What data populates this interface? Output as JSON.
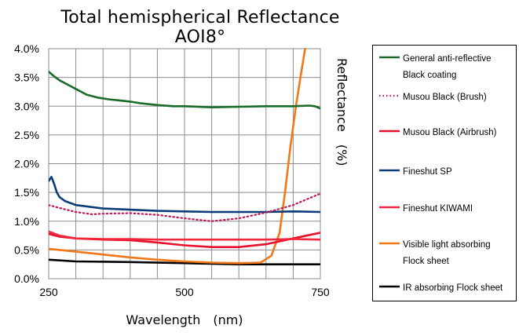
{
  "chart_data": {
    "type": "line",
    "title": "Total hemispherical Reflectance AOI8°",
    "xlabel": "Wavelength　(nm)",
    "ylabel": "Reflectance　(%)",
    "xlim": [
      250,
      750
    ],
    "ylim": [
      0,
      4.0
    ],
    "xticks": [
      "250",
      "500",
      "750"
    ],
    "yticks": [
      "0.0%",
      "0.5%",
      "1.0%",
      "1.5%",
      "2.0%",
      "2.5%",
      "3.0%",
      "3.5%",
      "4.0%"
    ],
    "grid": true,
    "legend_position": "right",
    "series": [
      {
        "name": "General anti-reflective Black coating",
        "color": "#1a6b2a",
        "dash": "solid",
        "x": [
          250,
          260,
          270,
          280,
          290,
          300,
          320,
          340,
          360,
          380,
          400,
          420,
          450,
          480,
          500,
          550,
          600,
          650,
          700,
          730,
          740,
          750
        ],
        "y": [
          3.6,
          3.52,
          3.45,
          3.4,
          3.35,
          3.3,
          3.2,
          3.15,
          3.12,
          3.1,
          3.08,
          3.05,
          3.02,
          3.0,
          3.0,
          2.98,
          2.99,
          3.0,
          3.0,
          3.01,
          3.0,
          2.96
        ]
      },
      {
        "name": "Musou Black (Brush)",
        "color": "#c0185a",
        "dash": "dot",
        "x": [
          250,
          270,
          300,
          330,
          350,
          400,
          450,
          500,
          550,
          600,
          650,
          700,
          730,
          750
        ],
        "y": [
          1.28,
          1.23,
          1.16,
          1.12,
          1.13,
          1.14,
          1.11,
          1.05,
          1.0,
          1.05,
          1.15,
          1.28,
          1.4,
          1.48
        ]
      },
      {
        "name": "Musou Black (Airbrush)",
        "color": "#e8102a",
        "dash": "solid",
        "x": [
          250,
          270,
          300,
          350,
          400,
          450,
          500,
          550,
          600,
          650,
          700,
          730,
          750
        ],
        "y": [
          0.78,
          0.73,
          0.7,
          0.68,
          0.67,
          0.63,
          0.58,
          0.55,
          0.55,
          0.6,
          0.7,
          0.76,
          0.8
        ]
      },
      {
        "name": "Fineshut SP",
        "color": "#0b3c7a",
        "dash": "solid",
        "x": [
          250,
          255,
          260,
          265,
          270,
          280,
          300,
          350,
          400,
          450,
          500,
          550,
          600,
          650,
          700,
          750
        ],
        "y": [
          1.7,
          1.77,
          1.65,
          1.5,
          1.42,
          1.35,
          1.28,
          1.22,
          1.2,
          1.18,
          1.17,
          1.16,
          1.16,
          1.16,
          1.17,
          1.16
        ]
      },
      {
        "name": "Fineshut KIWAMI",
        "color": "#f0283c",
        "dash": "solid",
        "x": [
          250,
          270,
          300,
          350,
          400,
          450,
          500,
          550,
          600,
          650,
          700,
          750
        ],
        "y": [
          0.82,
          0.75,
          0.7,
          0.69,
          0.69,
          0.68,
          0.68,
          0.68,
          0.68,
          0.68,
          0.69,
          0.68
        ]
      },
      {
        "name": "Visible light absorbing Flock sheet",
        "color": "#f07818",
        "dash": "solid",
        "x": [
          250,
          300,
          350,
          400,
          450,
          500,
          550,
          600,
          640,
          660,
          675,
          685,
          695,
          705,
          715,
          722
        ],
        "y": [
          0.52,
          0.47,
          0.42,
          0.37,
          0.33,
          0.3,
          0.28,
          0.27,
          0.28,
          0.4,
          0.8,
          1.5,
          2.3,
          3.0,
          3.6,
          4.0
        ]
      },
      {
        "name": "IR absorbing Flock sheet",
        "color": "#000000",
        "dash": "solid",
        "x": [
          250,
          300,
          400,
          500,
          550,
          600,
          650,
          700,
          750
        ],
        "y": [
          0.33,
          0.3,
          0.29,
          0.27,
          0.26,
          0.25,
          0.25,
          0.25,
          0.25
        ]
      }
    ]
  }
}
